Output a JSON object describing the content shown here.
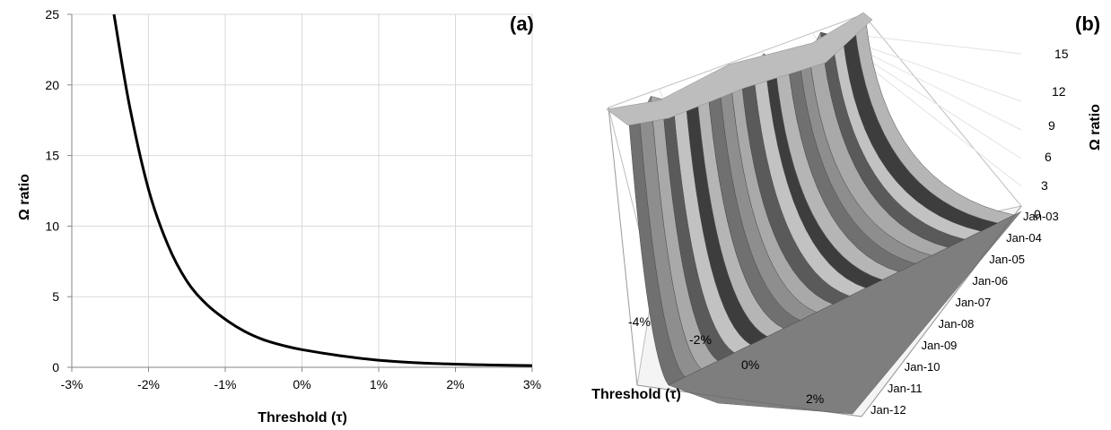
{
  "chart_data": [
    {
      "panel": "(a)",
      "type": "line",
      "xlabel": "Threshold (τ)",
      "ylabel": "Ω ratio",
      "xlim": [
        -0.03,
        0.03
      ],
      "ylim": [
        0,
        25
      ],
      "x_ticks": [
        -0.03,
        -0.02,
        -0.01,
        0,
        0.01,
        0.02,
        0.03
      ],
      "x_tick_labels": [
        "-3%",
        "-2%",
        "-1%",
        "0%",
        "1%",
        "2%",
        "3%"
      ],
      "y_ticks": [
        0,
        5,
        10,
        15,
        20,
        25
      ],
      "y_tick_labels": [
        "0",
        "5",
        "10",
        "15",
        "20",
        "25"
      ],
      "grid": true,
      "line_color": "#000000",
      "series": [
        {
          "x": [
            -0.0245,
            -0.0225,
            -0.02,
            -0.0175,
            -0.015,
            -0.0125,
            -0.01,
            -0.0075,
            -0.005,
            -0.0025,
            0,
            0.005,
            0.01,
            0.015,
            0.02,
            0.025,
            0.03
          ],
          "y": [
            25,
            18.6,
            12.6,
            8.7,
            6.1,
            4.5,
            3.4,
            2.55,
            1.95,
            1.55,
            1.25,
            0.82,
            0.5,
            0.32,
            0.22,
            0.16,
            0.12
          ]
        }
      ]
    },
    {
      "panel": "(b)",
      "type": "surface",
      "xlabel": "Threshold (τ)",
      "zlabel": "Ω ratio",
      "x_tick_labels": [
        "-4%",
        "-2%",
        "0%",
        "2%"
      ],
      "y_tick_labels": [
        "Jan-03",
        "Jan-04",
        "Jan-05",
        "Jan-06",
        "Jan-07",
        "Jan-08",
        "Jan-09",
        "Jan-10",
        "Jan-11",
        "Jan-12"
      ],
      "z_tick_labels": [
        "0",
        "3",
        "6",
        "9",
        "12",
        "15"
      ],
      "zlim": [
        0,
        15
      ],
      "grid": true,
      "colors": [
        "#707070",
        "#8e8e8e",
        "#a9a9a9",
        "#5a5a5a",
        "#c2c2c2",
        "#3d3d3d",
        "#b5b5b5"
      ]
    }
  ]
}
